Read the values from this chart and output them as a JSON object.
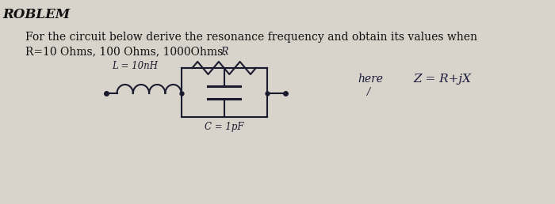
{
  "background_color": "#d8d4cc",
  "title_text": "ROBLEM",
  "title_fontsize": 12,
  "title_fontweight": "bold",
  "problem_text_line1": "For the circuit below derive the resonance frequency and obtain its values when",
  "problem_text_line2": "R=10 Ohms, 100 Ohms, 1000Ohms.",
  "problem_fontsize": 10,
  "label_L": "L = 10nH",
  "label_C": "C = 1pF",
  "label_R": "R",
  "label_here": "here",
  "label_Z": "Z = R+jX",
  "circuit_color": "#1a1a2e",
  "text_color": "#111111",
  "handwriting_color": "#1a1a3a"
}
